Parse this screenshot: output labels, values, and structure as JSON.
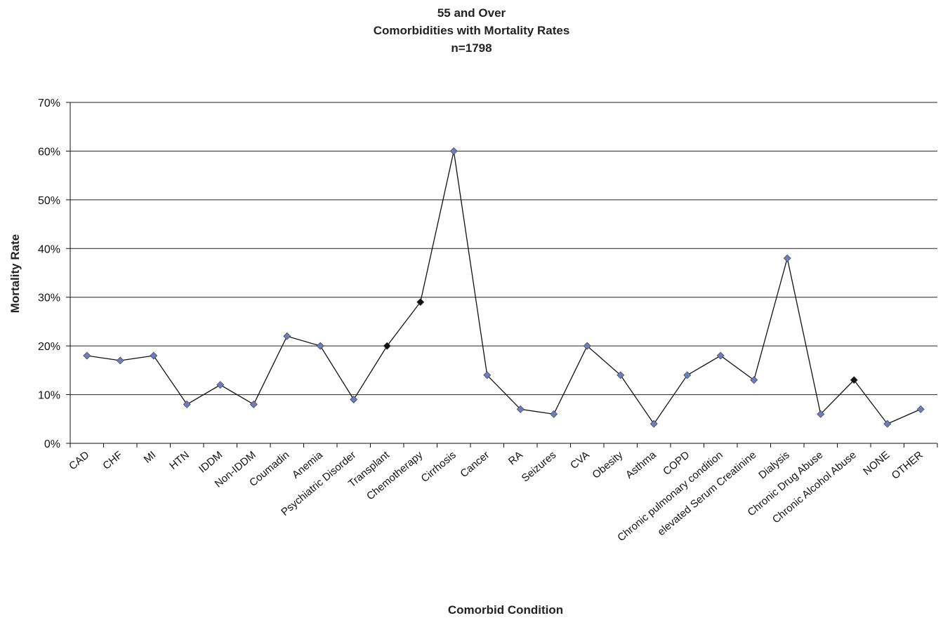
{
  "chart_data": {
    "type": "line",
    "title": "55 and Over",
    "subtitle": "Comorbidities with Mortality Rates",
    "note": "n=1798",
    "xlabel": "Comorbid Condition",
    "ylabel": "Mortality Rate",
    "ylim": [
      0,
      70
    ],
    "yticks": [
      "0%",
      "10%",
      "20%",
      "30%",
      "40%",
      "50%",
      "60%",
      "70%"
    ],
    "grid": true,
    "legend": "none",
    "categories": [
      "CAD",
      "CHF",
      "MI",
      "HTN",
      "IDDM",
      "Non-IDDM",
      "Coumadin",
      "Anemia",
      "Psychiatric Disorder",
      "Transplant",
      "Chemotherapy",
      "Cirrhosis",
      "Cancer",
      "RA",
      "Seizures",
      "CVA",
      "Obesity",
      "Asthma",
      "COPD",
      "Chronic pulmonary condition",
      "elevated Serum Creatinine",
      "Dialysis",
      "Chronic Drug Abuse",
      "Chronic Alcohol Abuse",
      "NONE",
      "OTHER"
    ],
    "values": [
      18,
      17,
      18,
      8,
      12,
      8,
      22,
      20,
      9,
      20,
      29,
      60,
      14,
      7,
      6,
      20,
      14,
      4,
      14,
      18,
      13,
      38,
      6,
      13,
      4,
      7
    ],
    "marker_colors": [
      "#6b7fc0",
      "#6b7fc0",
      "#6b7fc0",
      "#6b7fc0",
      "#6b7fc0",
      "#6b7fc0",
      "#6b7fc0",
      "#6b7fc0",
      "#6b7fc0",
      "#111111",
      "#111111",
      "#6b7fc0",
      "#6b7fc0",
      "#6b7fc0",
      "#6b7fc0",
      "#6b7fc0",
      "#6b7fc0",
      "#6b7fc0",
      "#6b7fc0",
      "#6b7fc0",
      "#6b7fc0",
      "#6b7fc0",
      "#6b7fc0",
      "#111111",
      "#6b7fc0",
      "#6b7fc0"
    ],
    "line_color": "#111111",
    "grid_color": "#222222"
  }
}
